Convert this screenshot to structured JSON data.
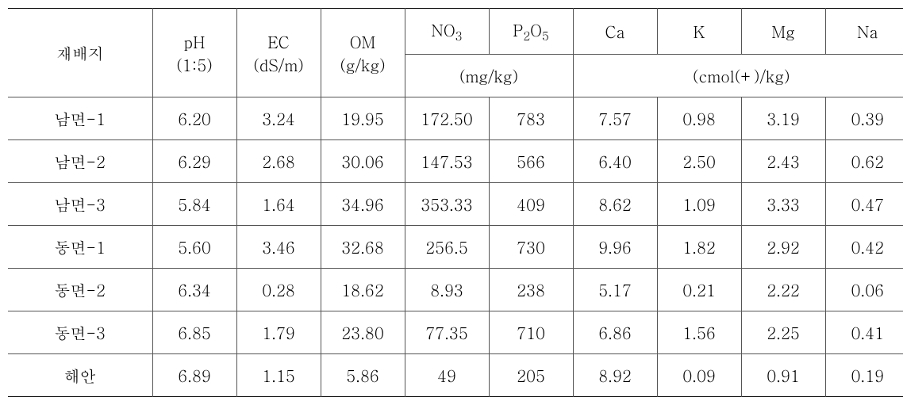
{
  "header": {
    "site": "재배지",
    "ph_top": "pH",
    "ph_bottom": "(1:5)",
    "ec_top": "EC",
    "ec_bottom": "(dS/m)",
    "om_top": "OM",
    "om_bottom": "(g/kg)",
    "no3": "NO",
    "no3_sub": "3",
    "p2o5_p": "P",
    "p2o5_sub2": "2",
    "p2o5_o": "O",
    "p2o5_sub5": "5",
    "mg_kg": "(mg/kg)",
    "ca": "Ca",
    "k": "K",
    "mg": "Mg",
    "na": "Na",
    "cmol": "(cmol(+)/kg)"
  },
  "rows": [
    {
      "site": "남면-1",
      "ph": "6.20",
      "ec": "3.24",
      "om": "19.95",
      "no3": "172.50",
      "p2o5": "783",
      "ca": "7.57",
      "k": "0.98",
      "mg": "3.19",
      "na": "0.39"
    },
    {
      "site": "남면-2",
      "ph": "6.29",
      "ec": "2.68",
      "om": "30.06",
      "no3": "147.53",
      "p2o5": "566",
      "ca": "6.40",
      "k": "2.50",
      "mg": "2.43",
      "na": "0.62"
    },
    {
      "site": "남면-3",
      "ph": "5.84",
      "ec": "1.64",
      "om": "34.96",
      "no3": "353.33",
      "p2o5": "409",
      "ca": "8.62",
      "k": "1.09",
      "mg": "3.33",
      "na": "0.47"
    },
    {
      "site": "동면-1",
      "ph": "5.60",
      "ec": "3.46",
      "om": "32.68",
      "no3": "256.5",
      "p2o5": "730",
      "ca": "9.96",
      "k": "1.82",
      "mg": "2.92",
      "na": "0.42"
    },
    {
      "site": "동면-2",
      "ph": "6.34",
      "ec": "0.28",
      "om": "18.62",
      "no3": "8.93",
      "p2o5": "238",
      "ca": "5.17",
      "k": "0.21",
      "mg": "2.22",
      "na": "0.06"
    },
    {
      "site": "동면-3",
      "ph": "6.85",
      "ec": "1.79",
      "om": "23.80",
      "no3": "77.35",
      "p2o5": "710",
      "ca": "6.86",
      "k": "1.56",
      "mg": "2.25",
      "na": "0.41"
    },
    {
      "site": "해안",
      "ph": "6.89",
      "ec": "1.15",
      "om": "5.86",
      "no3": "49",
      "p2o5": "205",
      "ca": "8.92",
      "k": "0.09",
      "mg": "0.91",
      "na": "0.19"
    }
  ]
}
